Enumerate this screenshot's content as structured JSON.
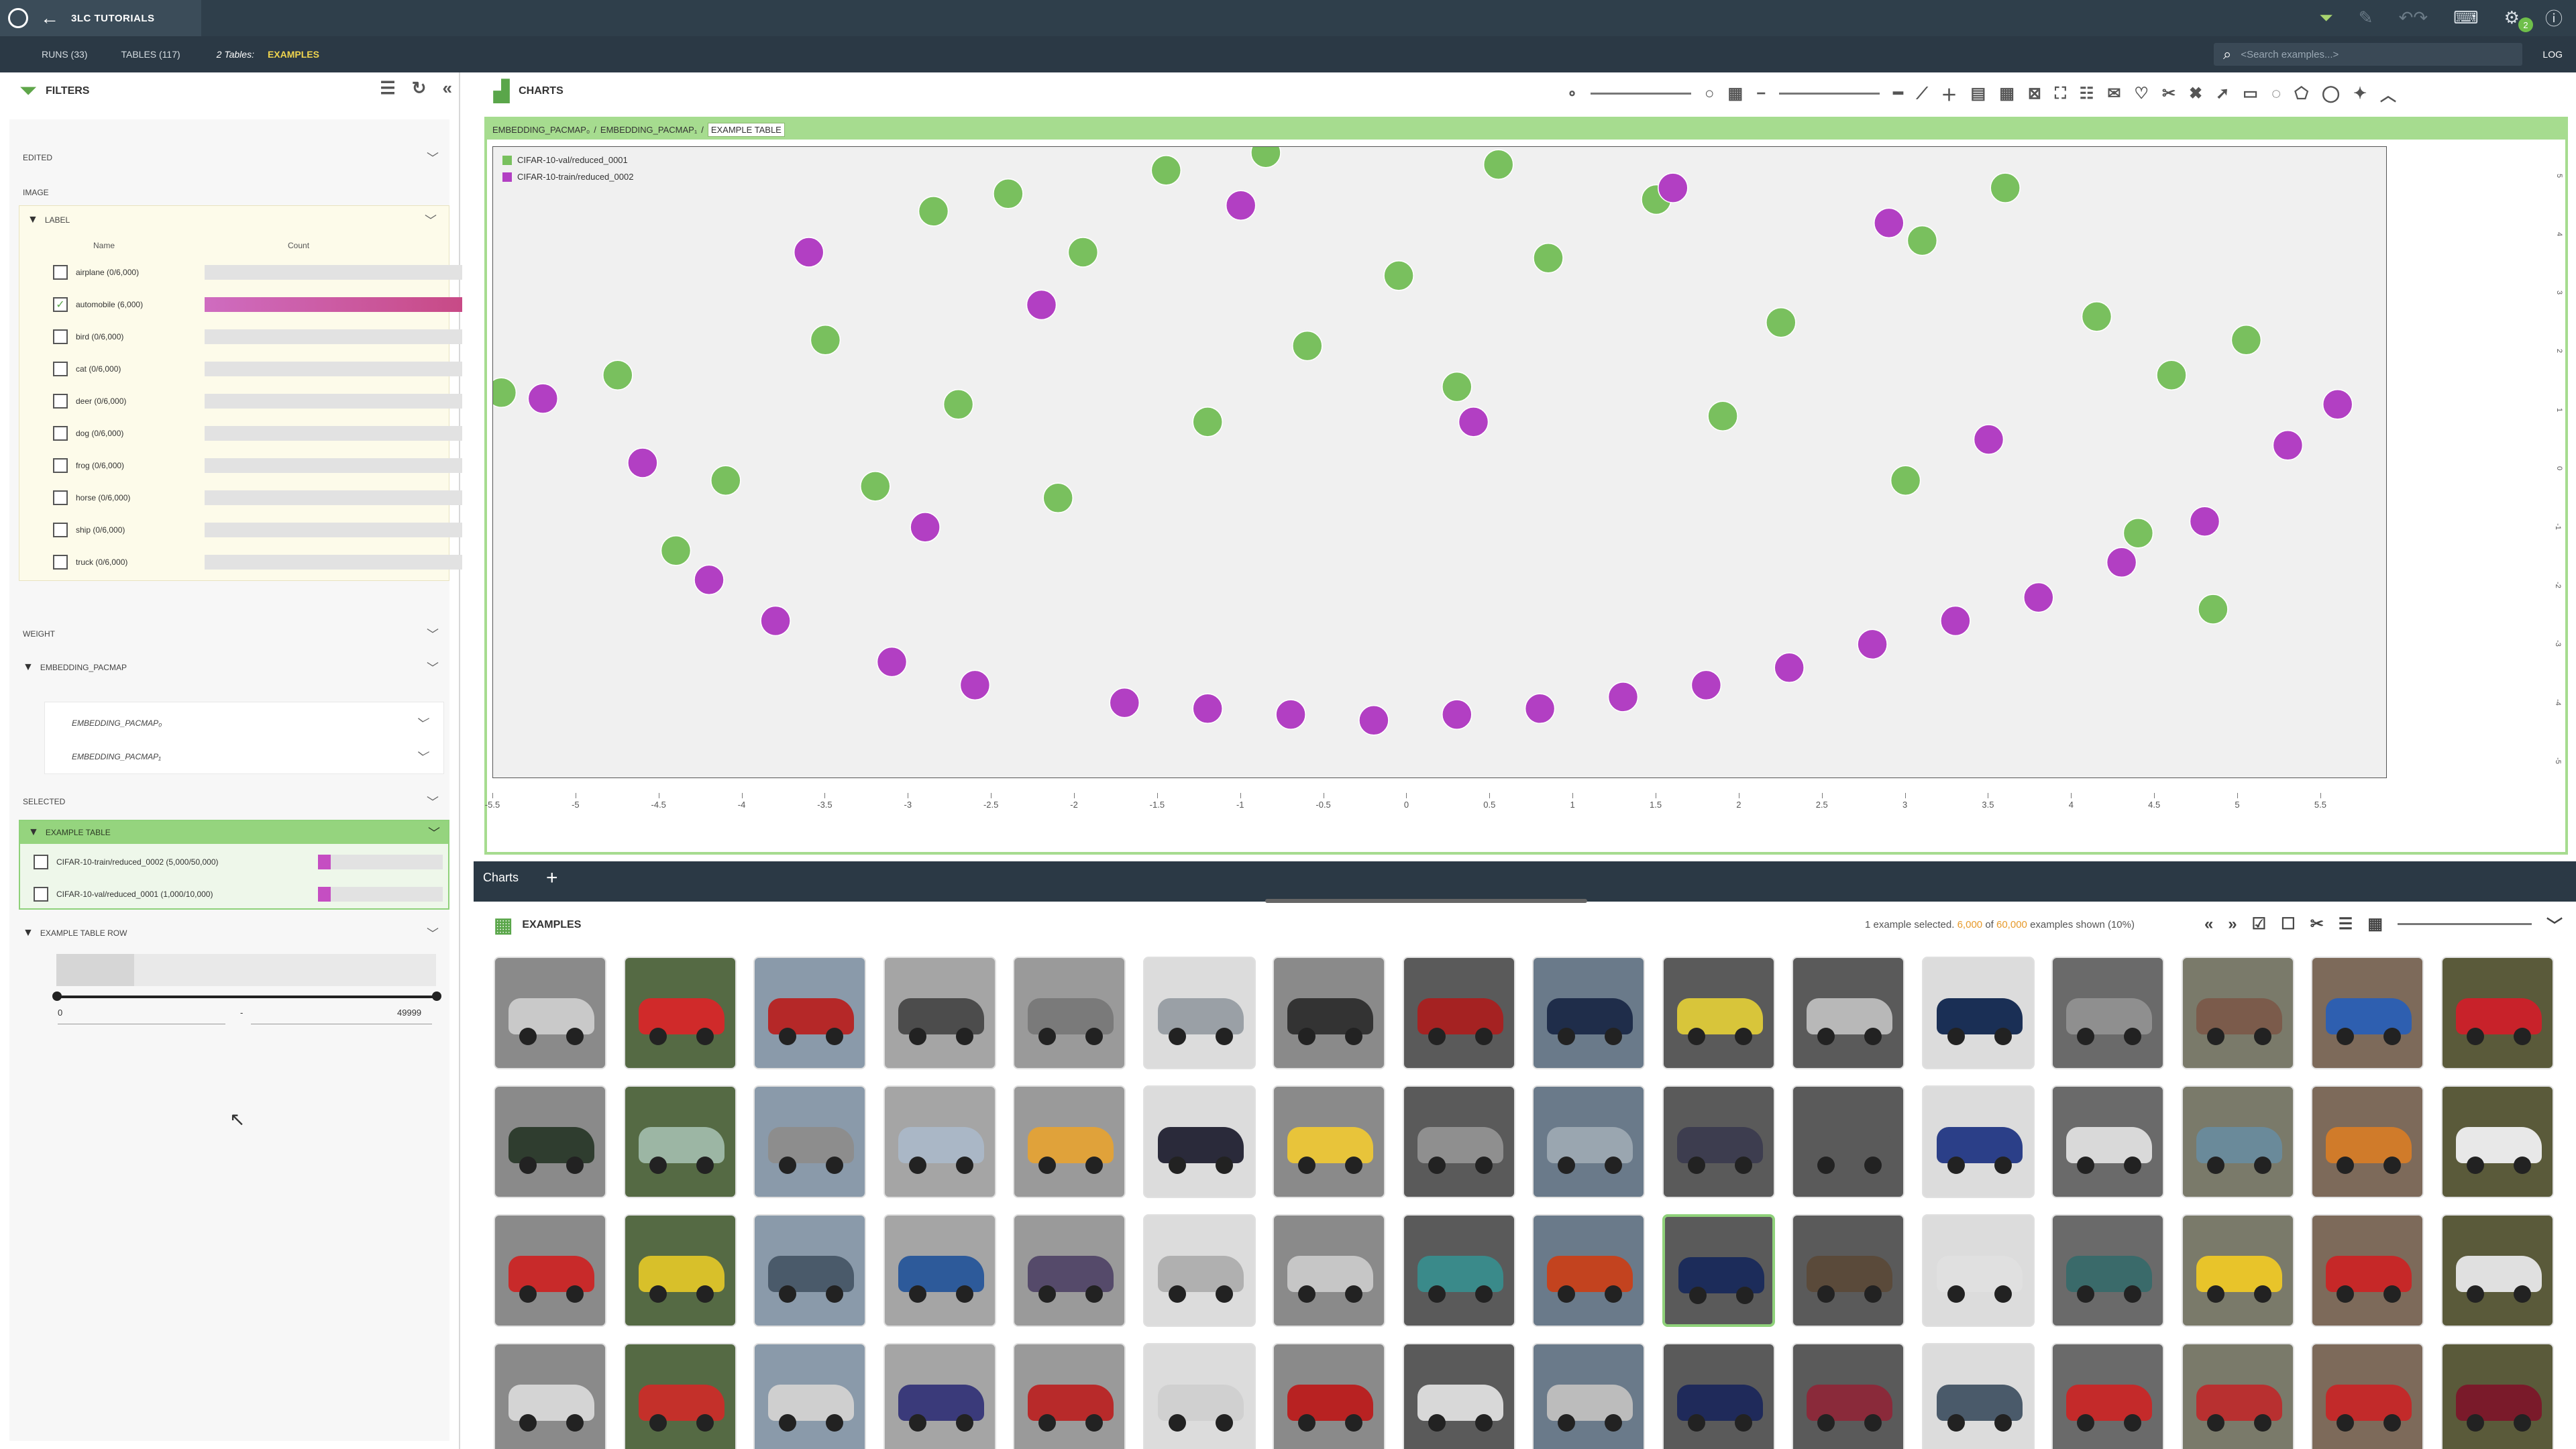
{
  "topbar": {
    "project_title": "3LC TUTORIALS",
    "notification_count": "2"
  },
  "subbar": {
    "runs_tab": "RUNS (33)",
    "tables_tab": "TABLES (117)",
    "tables_count": "2 Tables:",
    "active_table": "EXAMPLES",
    "search_placeholder": "<Search examples...>",
    "log_label": "LOG"
  },
  "filters": {
    "title": "FILTERS",
    "sections": {
      "edited": "EDITED",
      "image": "IMAGE",
      "label": "LABEL",
      "weight": "WEIGHT",
      "embedding": "EMBEDDING_PACMAP",
      "embedding_x": "EMBEDDING_PACMAP₀",
      "embedding_y": "EMBEDDING_PACMAP₁",
      "selected": "SELECTED",
      "example_table": "EXAMPLE TABLE",
      "example_table_row": "EXAMPLE TABLE ROW"
    },
    "label_columns": {
      "name": "Name",
      "count": "Count"
    },
    "labels": [
      {
        "text": "airplane (0/6,000)",
        "checked": false,
        "fill": 0
      },
      {
        "text": "automobile (6,000)",
        "checked": true,
        "fill": 1
      },
      {
        "text": "bird (0/6,000)",
        "checked": false,
        "fill": 0
      },
      {
        "text": "cat (0/6,000)",
        "checked": false,
        "fill": 0
      },
      {
        "text": "deer (0/6,000)",
        "checked": false,
        "fill": 0
      },
      {
        "text": "dog (0/6,000)",
        "checked": false,
        "fill": 0
      },
      {
        "text": "frog (0/6,000)",
        "checked": false,
        "fill": 0
      },
      {
        "text": "horse (0/6,000)",
        "checked": false,
        "fill": 0
      },
      {
        "text": "ship (0/6,000)",
        "checked": false,
        "fill": 0
      },
      {
        "text": "truck (0/6,000)",
        "checked": false,
        "fill": 0
      }
    ],
    "example_tables": [
      {
        "text": "CIFAR-10-train/reduced_0002 (5,000/50,000)",
        "fill": 0.1
      },
      {
        "text": "CIFAR-10-val/reduced_0001 (1,000/10,000)",
        "fill": 0.1
      }
    ],
    "row_range": {
      "min": "0",
      "sep": "-",
      "max": "49999"
    }
  },
  "charts": {
    "title": "CHARTS",
    "breadcrumb": [
      "EMBEDDING_PACMAP₀",
      "EMBEDDING_PACMAP₁"
    ],
    "breadcrumb_sep": "/",
    "breadcrumb_active": "EXAMPLE TABLE",
    "tab_label": "Charts",
    "tab_add": "+"
  },
  "chart_data": {
    "type": "scatter",
    "title": "",
    "xlabel": "",
    "ylabel": "",
    "xlim": [
      -5.5,
      5.9
    ],
    "ylim": [
      -5.3,
      5.5
    ],
    "x_ticks": [
      "-5.5",
      "-5",
      "-4.5",
      "-4",
      "-3.5",
      "-3",
      "-2.5",
      "-2",
      "-1.5",
      "-1",
      "-0.5",
      "0",
      "0.5",
      "1",
      "1.5",
      "2",
      "2.5",
      "3",
      "3.5",
      "4",
      "4.5",
      "5",
      "5.5"
    ],
    "y_ticks": [
      "5",
      "4",
      "3",
      "2",
      "1",
      "0",
      "-1",
      "-2",
      "-3",
      "-4",
      "-5"
    ],
    "legend_position": "top-left",
    "series": [
      {
        "name": "CIFAR-10-val/reduced_0001",
        "color": "#79c05e",
        "points": [
          [
            -5.45,
            1.3
          ],
          [
            -4.75,
            1.6
          ],
          [
            -4.1,
            -0.2
          ],
          [
            -3.5,
            2.2
          ],
          [
            -2.85,
            4.4
          ],
          [
            -2.4,
            4.7
          ],
          [
            -1.95,
            3.7
          ],
          [
            -1.45,
            5.1
          ],
          [
            -0.85,
            5.4
          ],
          [
            -0.6,
            2.1
          ],
          [
            -0.05,
            3.3
          ],
          [
            0.55,
            5.2
          ],
          [
            0.85,
            3.6
          ],
          [
            1.5,
            4.6
          ],
          [
            2.25,
            2.5
          ],
          [
            3.1,
            3.9
          ],
          [
            3.6,
            4.8
          ],
          [
            4.15,
            2.6
          ],
          [
            4.6,
            1.6
          ],
          [
            4.85,
            -2.4
          ],
          [
            5.05,
            2.2
          ],
          [
            4.4,
            -1.1
          ],
          [
            3.0,
            -0.2
          ],
          [
            -2.1,
            -0.5
          ],
          [
            -3.2,
            -0.3
          ],
          [
            -4.4,
            -1.4
          ],
          [
            -1.2,
            0.8
          ],
          [
            1.9,
            0.9
          ],
          [
            0.3,
            1.4
          ],
          [
            -2.7,
            1.1
          ]
        ]
      },
      {
        "name": "CIFAR-10-train/reduced_0002",
        "color": "#b23fc3",
        "points": [
          [
            -5.2,
            1.2
          ],
          [
            -4.6,
            0.1
          ],
          [
            -4.2,
            -1.9
          ],
          [
            -3.8,
            -2.6
          ],
          [
            -3.6,
            3.7
          ],
          [
            -3.1,
            -3.3
          ],
          [
            -2.6,
            -3.7
          ],
          [
            -2.2,
            2.8
          ],
          [
            -1.7,
            -4.0
          ],
          [
            -1.2,
            -4.1
          ],
          [
            -0.7,
            -4.2
          ],
          [
            -0.2,
            -4.3
          ],
          [
            0.3,
            -4.2
          ],
          [
            0.8,
            -4.1
          ],
          [
            1.3,
            -3.9
          ],
          [
            1.8,
            -3.7
          ],
          [
            2.3,
            -3.4
          ],
          [
            2.8,
            -3.0
          ],
          [
            3.3,
            -2.6
          ],
          [
            3.8,
            -2.2
          ],
          [
            4.3,
            -1.6
          ],
          [
            4.8,
            -0.9
          ],
          [
            5.3,
            0.4
          ],
          [
            5.6,
            1.1
          ],
          [
            1.6,
            4.8
          ],
          [
            2.9,
            4.2
          ],
          [
            -1.0,
            4.5
          ],
          [
            0.4,
            0.8
          ],
          [
            -2.9,
            -1.0
          ],
          [
            3.5,
            0.5
          ]
        ]
      }
    ]
  },
  "examples": {
    "title": "EXAMPLES",
    "status_prefix": "1 example selected.",
    "shown": "6,000",
    "of_label": "of",
    "total": "60,000",
    "status_suffix": "examples shown (10%)"
  }
}
